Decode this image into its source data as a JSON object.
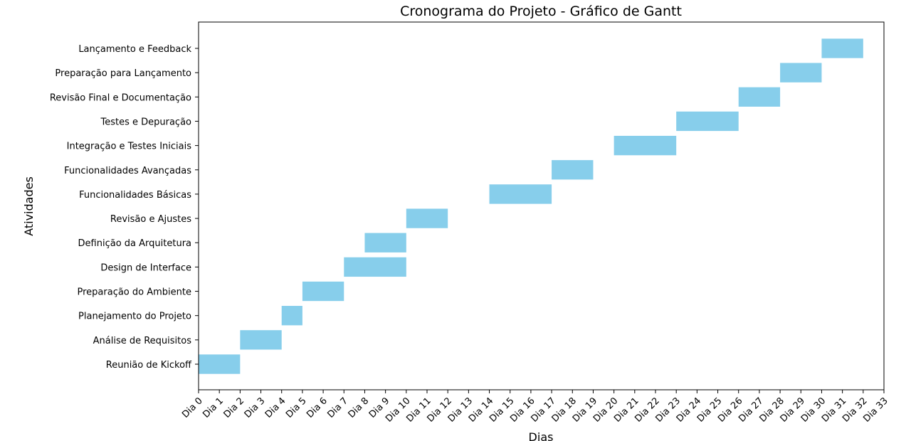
{
  "chart_data": {
    "type": "bar",
    "orientation": "horizontal",
    "title": "Cronograma do Projeto - Gráfico de Gantt",
    "xlabel": "Dias",
    "ylabel": "Atividades",
    "xlim": [
      0,
      33
    ],
    "grid": false,
    "bar_color": "#87ceeb",
    "x_ticks": [
      "Dia 0",
      "Dia 1",
      "Dia 2",
      "Dia 3",
      "Dia 4",
      "Dia 5",
      "Dia 6",
      "Dia 7",
      "Dia 8",
      "Dia 9",
      "Dia 10",
      "Dia 11",
      "Dia 12",
      "Dia 13",
      "Dia 14",
      "Dia 15",
      "Dia 16",
      "Dia 17",
      "Dia 18",
      "Dia 19",
      "Dia 20",
      "Dia 21",
      "Dia 22",
      "Dia 23",
      "Dia 24",
      "Dia 25",
      "Dia 26",
      "Dia 27",
      "Dia 28",
      "Dia 29",
      "Dia 30",
      "Dia 31",
      "Dia 32",
      "Dia 33"
    ],
    "tasks": [
      {
        "name": "Reunião de Kickoff",
        "start": 0,
        "end": 2
      },
      {
        "name": "Análise de Requisitos",
        "start": 2,
        "end": 4
      },
      {
        "name": "Planejamento do Projeto",
        "start": 4,
        "end": 5
      },
      {
        "name": "Preparação do Ambiente",
        "start": 5,
        "end": 7
      },
      {
        "name": "Design de Interface",
        "start": 7,
        "end": 10
      },
      {
        "name": "Definição da Arquitetura",
        "start": 8,
        "end": 10
      },
      {
        "name": "Revisão e Ajustes",
        "start": 10,
        "end": 12
      },
      {
        "name": "Funcionalidades Básicas",
        "start": 14,
        "end": 17
      },
      {
        "name": "Funcionalidades Avançadas",
        "start": 17,
        "end": 19
      },
      {
        "name": "Integração e Testes Iniciais",
        "start": 20,
        "end": 23
      },
      {
        "name": "Testes e Depuração",
        "start": 23,
        "end": 26
      },
      {
        "name": "Revisão Final e Documentação",
        "start": 26,
        "end": 28
      },
      {
        "name": "Preparação para Lançamento",
        "start": 28,
        "end": 30
      },
      {
        "name": "Lançamento e Feedback",
        "start": 30,
        "end": 32
      }
    ]
  }
}
